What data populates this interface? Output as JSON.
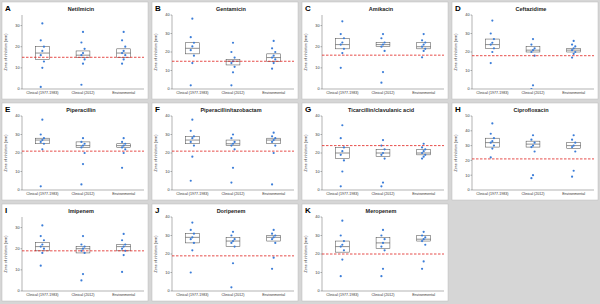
{
  "chart_data": [
    {
      "type": "box",
      "panel": "A",
      "title": "Netilmicin",
      "y_label": "Zone of inhibition (mm)",
      "categories": [
        "Clinical (1977-1983)",
        "Clinical (2012)",
        "Environmental"
      ],
      "ylim": [
        0,
        35
      ],
      "yticks": [
        0,
        10,
        20,
        30
      ],
      "color": "#3b7dd8",
      "breakpoint": 15,
      "values": [
        [
          1,
          10,
          13,
          16,
          18,
          20,
          23,
          31
        ],
        [
          2,
          12,
          14,
          16,
          17,
          19,
          22,
          27
        ],
        [
          12,
          14,
          16,
          17,
          18,
          20,
          23,
          27
        ]
      ],
      "boxes": [
        [
          14,
          17,
          20
        ],
        [
          15,
          16,
          18
        ],
        [
          15,
          17,
          19
        ]
      ]
    },
    {
      "type": "box",
      "panel": "B",
      "title": "Gentamicin",
      "y_label": "Zone of inhibition (mm)",
      "categories": [
        "Clinical (1977-1983)",
        "Clinical (2012)",
        "Environmental"
      ],
      "ylim": [
        0,
        40
      ],
      "yticks": [
        0,
        10,
        20,
        30,
        40
      ],
      "color": "#3b7dd8",
      "breakpoint": 15,
      "values": [
        [
          2,
          14,
          18,
          21,
          23,
          25,
          28,
          38
        ],
        [
          2,
          9,
          12,
          14,
          15,
          17,
          20,
          25
        ],
        [
          11,
          14,
          16,
          17,
          18,
          20,
          22,
          26
        ]
      ],
      "boxes": [
        [
          19,
          22,
          25
        ],
        [
          13,
          15,
          16
        ],
        [
          15,
          17,
          19
        ]
      ]
    },
    {
      "type": "box",
      "panel": "C",
      "title": "Amikacin",
      "y_label": "Zone of inhibition (mm)",
      "categories": [
        "Clinical (1977-1983)",
        "Clinical (2012)",
        "Environmental"
      ],
      "ylim": [
        0,
        35
      ],
      "yticks": [
        0,
        10,
        20,
        30
      ],
      "color": "#3b7dd8",
      "breakpoint": 16,
      "values": [
        [
          10,
          17,
          19,
          21,
          22,
          24,
          26,
          32
        ],
        [
          3,
          8,
          18,
          20,
          21,
          22,
          24,
          26
        ],
        [
          15,
          18,
          19,
          20,
          21,
          22,
          23,
          26
        ]
      ],
      "boxes": [
        [
          19,
          21,
          24
        ],
        [
          20,
          21,
          22
        ],
        [
          19,
          20,
          22
        ]
      ]
    },
    {
      "type": "box",
      "panel": "D",
      "title": "Ceftazidime",
      "y_label": "Zone of inhibition (mm)",
      "categories": [
        "Clinical (1977-1983)",
        "Clinical (2012)",
        "Environmental"
      ],
      "ylim": [
        0,
        40
      ],
      "yticks": [
        0,
        10,
        20,
        30,
        40
      ],
      "color": "#3b7dd8",
      "breakpoint": 18,
      "values": [
        [
          14,
          20,
          22,
          24,
          25,
          27,
          30,
          37
        ],
        [
          0,
          2,
          18,
          20,
          21,
          22,
          24,
          27
        ],
        [
          17,
          19,
          20,
          21,
          22,
          23,
          24,
          26
        ]
      ],
      "boxes": [
        [
          22,
          24,
          27
        ],
        [
          20,
          21,
          23
        ],
        [
          20,
          21,
          22
        ]
      ]
    },
    {
      "type": "box",
      "panel": "E",
      "title": "Piperacillin",
      "y_label": "Zone of inhibition (mm)",
      "categories": [
        "Clinical (1977-1983)",
        "Clinical (2012)",
        "Environmental"
      ],
      "ylim": [
        0,
        40
      ],
      "yticks": [
        0,
        10,
        20,
        30,
        40
      ],
      "color": "#3b7dd8",
      "breakpoint": 21,
      "values": [
        [
          2,
          22,
          25,
          26,
          27,
          28,
          30,
          38
        ],
        [
          3,
          14,
          20,
          23,
          24,
          25,
          26,
          28
        ],
        [
          12,
          20,
          22,
          23,
          24,
          25,
          26,
          28
        ]
      ],
      "boxes": [
        [
          25,
          27,
          28
        ],
        [
          23,
          24,
          26
        ],
        [
          23,
          24,
          25
        ]
      ]
    },
    {
      "type": "box",
      "panel": "F",
      "title": "Piperacillin/tazobactam",
      "y_label": "Zone of inhibition (mm)",
      "categories": [
        "Clinical (1977-1983)",
        "Clinical (2012)",
        "Environmental"
      ],
      "ylim": [
        0,
        40
      ],
      "yticks": [
        0,
        10,
        20,
        30,
        40
      ],
      "color": "#3b7dd8",
      "breakpoint": 21,
      "values": [
        [
          5,
          18,
          24,
          26,
          28,
          29,
          32,
          38
        ],
        [
          4,
          12,
          22,
          24,
          25,
          26,
          28,
          30
        ],
        [
          3,
          20,
          24,
          26,
          27,
          28,
          29,
          31
        ]
      ],
      "boxes": [
        [
          25,
          27,
          29
        ],
        [
          24,
          25,
          27
        ],
        [
          25,
          27,
          28
        ]
      ]
    },
    {
      "type": "box",
      "panel": "G",
      "title": "Ticarcillin/clavulanic acid",
      "y_label": "Zone of inhibition (mm)",
      "categories": [
        "Clinical (1977-1983)",
        "Clinical (2012)",
        "Environmental"
      ],
      "ylim": [
        0,
        40
      ],
      "yticks": [
        0,
        10,
        20,
        30,
        40
      ],
      "color": "#3b7dd8",
      "breakpoint": 24,
      "values": [
        [
          2,
          10,
          16,
          19,
          21,
          23,
          28,
          35
        ],
        [
          2,
          4,
          17,
          19,
          20,
          22,
          24,
          27
        ],
        [
          17,
          18,
          19,
          20,
          21,
          22,
          23,
          25
        ]
      ],
      "boxes": [
        [
          17,
          20,
          23
        ],
        [
          18,
          20,
          22
        ],
        [
          19,
          20,
          22
        ]
      ]
    },
    {
      "type": "box",
      "panel": "H",
      "title": "Ciprofloxacin",
      "y_label": "Zone of inhibition (mm)",
      "categories": [
        "Clinical (1977-1983)",
        "Clinical (2012)",
        "Environmental"
      ],
      "ylim": [
        0,
        50
      ],
      "yticks": [
        0,
        10,
        20,
        30,
        40,
        50
      ],
      "color": "#3b7dd8",
      "breakpoint": 21,
      "values": [
        [
          22,
          28,
          30,
          32,
          33,
          35,
          38,
          45
        ],
        [
          8,
          10,
          26,
          29,
          30,
          32,
          34,
          37
        ],
        [
          9,
          13,
          26,
          29,
          30,
          32,
          34,
          37
        ]
      ],
      "boxes": [
        [
          29,
          32,
          35
        ],
        [
          29,
          31,
          33
        ],
        [
          28,
          30,
          32
        ]
      ]
    },
    {
      "type": "box",
      "panel": "I",
      "title": "Imipenem",
      "y_label": "Zone of inhibition (mm)",
      "categories": [
        "Clinical (1977-1983)",
        "Clinical (2012)",
        "Environmental"
      ],
      "ylim": [
        0,
        35
      ],
      "yticks": [
        0,
        10,
        20,
        30
      ],
      "color": "#3b7dd8",
      "breakpoint": 19,
      "values": [
        [
          12,
          18,
          20,
          21,
          22,
          24,
          26,
          31
        ],
        [
          5,
          8,
          18,
          19,
          20,
          21,
          22,
          26
        ],
        [
          9,
          17,
          19,
          20,
          21,
          22,
          24,
          27
        ]
      ],
      "boxes": [
        [
          19,
          21,
          23
        ],
        [
          18,
          20,
          21
        ],
        [
          19,
          21,
          22
        ]
      ]
    },
    {
      "type": "box",
      "panel": "J",
      "title": "Doripenem",
      "y_label": "Zone of inhibition (mm)",
      "categories": [
        "Clinical (1977-1983)",
        "Clinical (2012)",
        "Environmental"
      ],
      "ylim": [
        0,
        40
      ],
      "yticks": [
        0,
        10,
        20,
        30,
        40
      ],
      "color": "#3b7dd8",
      "breakpoint": 19,
      "values": [
        [
          10,
          22,
          26,
          28,
          29,
          31,
          33,
          37
        ],
        [
          2,
          15,
          24,
          26,
          27,
          28,
          30,
          32
        ],
        [
          12,
          18,
          26,
          28,
          29,
          30,
          31,
          33
        ]
      ],
      "boxes": [
        [
          26,
          29,
          31
        ],
        [
          24,
          27,
          29
        ],
        [
          27,
          29,
          30
        ]
      ]
    },
    {
      "type": "box",
      "panel": "K",
      "title": "Meropenem",
      "y_label": "Zone of inhibition (mm)",
      "categories": [
        "Clinical (1977-1983)",
        "Clinical (2012)",
        "Environmental"
      ],
      "ylim": [
        0,
        40
      ],
      "yticks": [
        0,
        10,
        20,
        30,
        40
      ],
      "color": "#3b7dd8",
      "breakpoint": 20,
      "values": [
        [
          8,
          17,
          22,
          24,
          25,
          27,
          30,
          38
        ],
        [
          8,
          12,
          22,
          24,
          26,
          28,
          30,
          33
        ],
        [
          12,
          16,
          25,
          27,
          28,
          29,
          30,
          32
        ]
      ],
      "boxes": [
        [
          21,
          24,
          27
        ],
        [
          23,
          26,
          29
        ],
        [
          27,
          28,
          30
        ]
      ]
    }
  ]
}
